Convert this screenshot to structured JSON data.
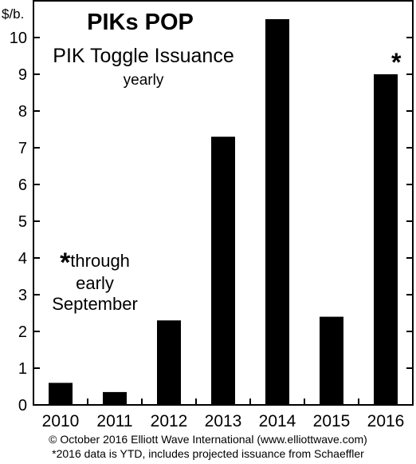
{
  "header": {
    "unit_label": "$/b.",
    "title": "PIKs POP",
    "subtitle": "PIK Toggle Issuance",
    "period": "yearly"
  },
  "annotations": {
    "asterisk": "*",
    "note_star": "*",
    "note_line1": "through",
    "note_line2": "early",
    "note_line3": "September"
  },
  "footer": {
    "copyright": "© October 2016 Elliott Wave International (www.elliottwave.com)",
    "footnote": "*2016 data is YTD, includes projected issuance from Schaeffler"
  },
  "chart_data": {
    "type": "bar",
    "title": "PIKs POP",
    "subtitle": "PIK Toggle Issuance",
    "ylabel": "$/b.",
    "categories": [
      "2010",
      "2011",
      "2012",
      "2013",
      "2014",
      "2015",
      "2016"
    ],
    "values": [
      0.6,
      0.35,
      2.3,
      7.3,
      10.5,
      2.4,
      9.0
    ],
    "ylim": [
      0,
      11
    ],
    "yticks": [
      0,
      1,
      2,
      3,
      4,
      5,
      6,
      7,
      8,
      9,
      10
    ],
    "bar_color": "#000000",
    "grid": false
  }
}
